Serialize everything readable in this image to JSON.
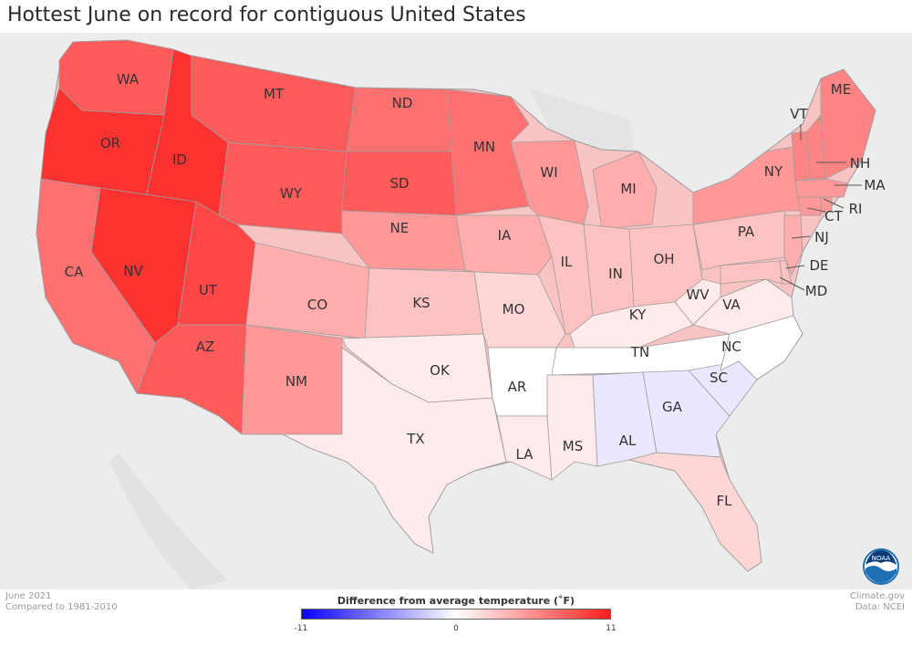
{
  "title": "Hottest June on record for contiguous United States",
  "footer": {
    "date": "June 2021",
    "baseline": "Compared to 1981-2010",
    "source": "Climate.gov",
    "data_source": "Data: NCEI"
  },
  "legend": {
    "title": "Difference from average temperature (˚F)",
    "min": "-11",
    "mid": "0",
    "max": "11",
    "colors": {
      "cold": "#0a00ff",
      "neutral": "#ffffff",
      "warm": "#ff1e1e"
    }
  },
  "logo": {
    "icon": "noaa-logo-icon",
    "text": "NOAA"
  },
  "map": {
    "states": [
      {
        "abbr": "WA",
        "anomaly": 8
      },
      {
        "abbr": "OR",
        "anomaly": 10
      },
      {
        "abbr": "ID",
        "anomaly": 10
      },
      {
        "abbr": "MT",
        "anomaly": 8
      },
      {
        "abbr": "ND",
        "anomaly": 7
      },
      {
        "abbr": "MN",
        "anomaly": 7
      },
      {
        "abbr": "SD",
        "anomaly": 8
      },
      {
        "abbr": "WY",
        "anomaly": 8
      },
      {
        "abbr": "CA",
        "anomaly": 7
      },
      {
        "abbr": "NV",
        "anomaly": 10
      },
      {
        "abbr": "UT",
        "anomaly": 9
      },
      {
        "abbr": "CO",
        "anomaly": 4
      },
      {
        "abbr": "AZ",
        "anomaly": 8
      },
      {
        "abbr": "NM",
        "anomaly": 5
      },
      {
        "abbr": "NE",
        "anomaly": 5
      },
      {
        "abbr": "KS",
        "anomaly": 3
      },
      {
        "abbr": "OK",
        "anomaly": 1
      },
      {
        "abbr": "TX",
        "anomaly": 1
      },
      {
        "abbr": "IA",
        "anomaly": 4
      },
      {
        "abbr": "MO",
        "anomaly": 2
      },
      {
        "abbr": "AR",
        "anomaly": 0
      },
      {
        "abbr": "LA",
        "anomaly": 1
      },
      {
        "abbr": "WI",
        "anomaly": 5
      },
      {
        "abbr": "IL",
        "anomaly": 3
      },
      {
        "abbr": "MI",
        "anomaly": 4
      },
      {
        "abbr": "IN",
        "anomaly": 3
      },
      {
        "abbr": "OH",
        "anomaly": 3
      },
      {
        "abbr": "KY",
        "anomaly": 1
      },
      {
        "abbr": "TN",
        "anomaly": 0
      },
      {
        "abbr": "MS",
        "anomaly": 1
      },
      {
        "abbr": "AL",
        "anomaly": -1
      },
      {
        "abbr": "GA",
        "anomaly": -1
      },
      {
        "abbr": "FL",
        "anomaly": 2
      },
      {
        "abbr": "SC",
        "anomaly": -1
      },
      {
        "abbr": "NC",
        "anomaly": 0
      },
      {
        "abbr": "VA",
        "anomaly": 1
      },
      {
        "abbr": "WV",
        "anomaly": 1
      },
      {
        "abbr": "PA",
        "anomaly": 3
      },
      {
        "abbr": "NY",
        "anomaly": 5
      },
      {
        "abbr": "VT",
        "anomaly": 6
      },
      {
        "abbr": "NH",
        "anomaly": 6
      },
      {
        "abbr": "ME",
        "anomaly": 6
      },
      {
        "abbr": "MA",
        "anomaly": 5
      },
      {
        "abbr": "RI",
        "anomaly": 5
      },
      {
        "abbr": "CT",
        "anomaly": 5
      },
      {
        "abbr": "NJ",
        "anomaly": 4
      },
      {
        "abbr": "DE",
        "anomaly": 3
      },
      {
        "abbr": "MD",
        "anomaly": 3
      }
    ]
  }
}
